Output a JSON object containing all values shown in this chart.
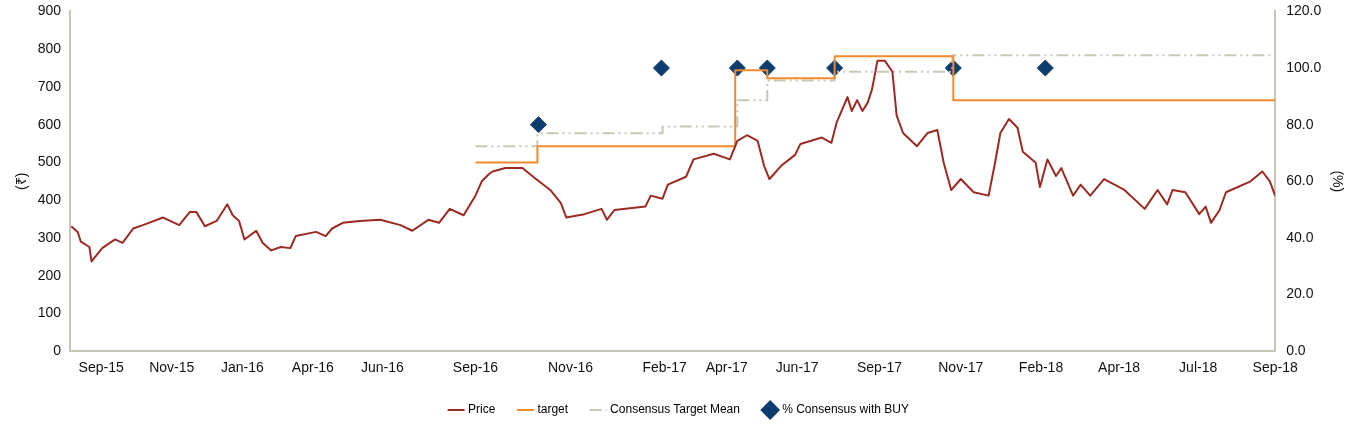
{
  "chart_data": {
    "type": "line",
    "ylabel": "(₹)",
    "y2label": "(%)",
    "grid": false,
    "legend": "bottom",
    "xlim": [
      "2015-08-20",
      "2018-09-20"
    ],
    "xticks": [
      {
        "value": "2015-09-18",
        "label": "Sep-15"
      },
      {
        "value": "2015-11-23",
        "label": "Nov-15"
      },
      {
        "value": "2016-01-28",
        "label": "Jan-16"
      },
      {
        "value": "2016-04-03",
        "label": "Apr-16"
      },
      {
        "value": "2016-06-07",
        "label": "Jun-16"
      },
      {
        "value": "2016-09-02",
        "label": "Sep-16"
      },
      {
        "value": "2016-11-30",
        "label": "Nov-16"
      },
      {
        "value": "2017-02-26",
        "label": "Feb-17"
      },
      {
        "value": "2017-04-25",
        "label": "Apr-17"
      },
      {
        "value": "2017-06-30",
        "label": "Jun-17"
      },
      {
        "value": "2017-09-15",
        "label": "Sep-17"
      },
      {
        "value": "2017-11-30",
        "label": "Nov-17"
      },
      {
        "value": "2018-02-13",
        "label": "Feb-18"
      },
      {
        "value": "2018-04-27",
        "label": "Apr-18"
      },
      {
        "value": "2018-07-10",
        "label": "Jul-18"
      },
      {
        "value": "2018-09-20",
        "label": "Sep-18"
      }
    ],
    "ylim": [
      0,
      900
    ],
    "yticks": [
      0,
      100,
      200,
      300,
      400,
      500,
      600,
      700,
      800,
      900
    ],
    "y2lim": [
      0,
      120
    ],
    "y2ticks": [
      {
        "value": 0,
        "label": "0.0"
      },
      {
        "value": 20,
        "label": "20.0"
      },
      {
        "value": 40,
        "label": "40.0"
      },
      {
        "value": 60,
        "label": "60.0"
      },
      {
        "value": 80,
        "label": "80.0"
      },
      {
        "value": 100,
        "label": "100.0"
      },
      {
        "value": 120,
        "label": "120.0"
      }
    ],
    "series": [
      {
        "name": "Price",
        "type": "line",
        "color": "#9b2a22",
        "marker": "none",
        "line_style": "solid",
        "x": [
          "2015-08-21",
          "2015-08-27",
          "2015-08-30",
          "2015-09-07",
          "2015-09-09",
          "2015-09-19",
          "2015-10-01",
          "2015-10-08",
          "2015-10-18",
          "2015-10-27",
          "2015-11-15",
          "2015-11-30",
          "2015-12-10",
          "2015-12-16",
          "2015-12-24",
          "2016-01-04",
          "2016-01-14",
          "2016-01-19",
          "2016-01-25",
          "2016-01-30",
          "2016-02-10",
          "2016-02-16",
          "2016-02-24",
          "2016-03-04",
          "2016-03-13",
          "2016-03-18",
          "2016-04-06",
          "2016-04-15",
          "2016-04-21",
          "2016-05-01",
          "2016-05-17",
          "2016-06-05",
          "2016-06-24",
          "2016-07-05",
          "2016-07-20",
          "2016-07-30",
          "2016-08-09",
          "2016-08-22",
          "2016-09-02",
          "2016-09-08",
          "2016-09-15",
          "2016-09-18",
          "2016-09-30",
          "2016-10-16",
          "2016-10-26",
          "2016-11-11",
          "2016-11-21",
          "2016-11-26",
          "2016-12-13",
          "2016-12-29",
          "2017-01-03",
          "2017-01-10",
          "2017-02-08",
          "2017-02-13",
          "2017-02-24",
          "2017-03-01",
          "2017-03-18",
          "2017-03-25",
          "2017-04-13",
          "2017-04-28",
          "2017-05-05",
          "2017-05-14",
          "2017-05-24",
          "2017-05-30",
          "2017-06-04",
          "2017-06-15",
          "2017-06-28",
          "2017-07-03",
          "2017-07-23",
          "2017-08-01",
          "2017-08-06",
          "2017-08-16",
          "2017-08-20",
          "2017-08-25",
          "2017-08-30",
          "2017-09-04",
          "2017-09-08",
          "2017-09-13",
          "2017-09-20",
          "2017-09-27",
          "2017-10-01",
          "2017-10-07",
          "2017-10-20",
          "2017-10-30",
          "2017-11-08",
          "2017-11-14",
          "2017-11-21",
          "2017-11-30",
          "2017-12-12",
          "2017-12-26",
          "2018-01-01",
          "2018-01-06",
          "2018-01-14",
          "2018-01-22",
          "2018-01-27",
          "2018-02-08",
          "2018-02-12",
          "2018-02-19",
          "2018-02-27",
          "2018-03-04",
          "2018-03-15",
          "2018-03-22",
          "2018-03-31",
          "2018-04-13",
          "2018-05-02",
          "2018-05-21",
          "2018-06-02",
          "2018-06-11",
          "2018-06-16",
          "2018-06-28",
          "2018-07-11",
          "2018-07-17",
          "2018-07-22",
          "2018-07-30",
          "2018-08-05",
          "2018-08-28",
          "2018-09-08",
          "2018-09-15",
          "2018-09-20"
        ],
        "values": [
          331,
          316,
          290,
          276,
          238,
          273,
          296,
          287,
          325,
          334,
          354,
          334,
          369,
          369,
          331,
          345,
          389,
          360,
          345,
          296,
          319,
          287,
          267,
          276,
          273,
          305,
          316,
          305,
          325,
          340,
          345,
          348,
          334,
          319,
          348,
          340,
          377,
          360,
          412,
          450,
          470,
          476,
          485,
          485,
          462,
          427,
          392,
          354,
          363,
          377,
          348,
          374,
          383,
          412,
          404,
          441,
          462,
          508,
          523,
          508,
          557,
          572,
          557,
          491,
          456,
          491,
          520,
          549,
          566,
          552,
          607,
          673,
          636,
          665,
          636,
          659,
          694,
          769,
          769,
          740,
          624,
          578,
          543,
          578,
          586,
          499,
          427,
          456,
          421,
          412,
          499,
          578,
          615,
          592,
          528,
          499,
          435,
          508,
          464,
          485,
          412,
          441,
          412,
          456,
          427,
          377,
          427,
          389,
          427,
          421,
          363,
          383,
          340,
          374,
          421,
          450,
          476,
          450,
          412
        ]
      },
      {
        "name": "target",
        "type": "step",
        "color": "#f08a2c",
        "marker": "none",
        "line_style": "solid",
        "x": [
          "2016-09-02",
          "2016-10-30",
          "2017-05-03",
          "2017-06-02",
          "2017-08-04",
          "2017-11-23",
          "2018-09-20"
        ],
        "values": [
          500,
          543,
          744,
          723,
          781,
          665,
          665
        ]
      },
      {
        "name": "Consensus Target Mean",
        "type": "step",
        "color": "#c9c7b6",
        "marker": "none",
        "line_style": "dashed",
        "x": [
          "2016-09-02",
          "2016-10-30",
          "2017-02-24",
          "2017-05-05",
          "2017-06-02",
          "2017-08-04",
          "2017-11-22",
          "2018-09-20"
        ],
        "values": [
          543,
          577,
          595,
          665,
          717,
          740,
          784,
          784
        ]
      },
      {
        "name": "% Consensus with BUY",
        "type": "scatter",
        "axis": "y2",
        "color": "#0d3d6e",
        "marker": "diamond",
        "x": [
          "2016-10-31",
          "2017-02-23",
          "2017-05-05",
          "2017-06-02",
          "2017-08-04",
          "2017-11-23",
          "2018-02-17"
        ],
        "values": [
          80,
          100,
          100,
          100,
          100,
          100,
          100
        ]
      }
    ]
  }
}
